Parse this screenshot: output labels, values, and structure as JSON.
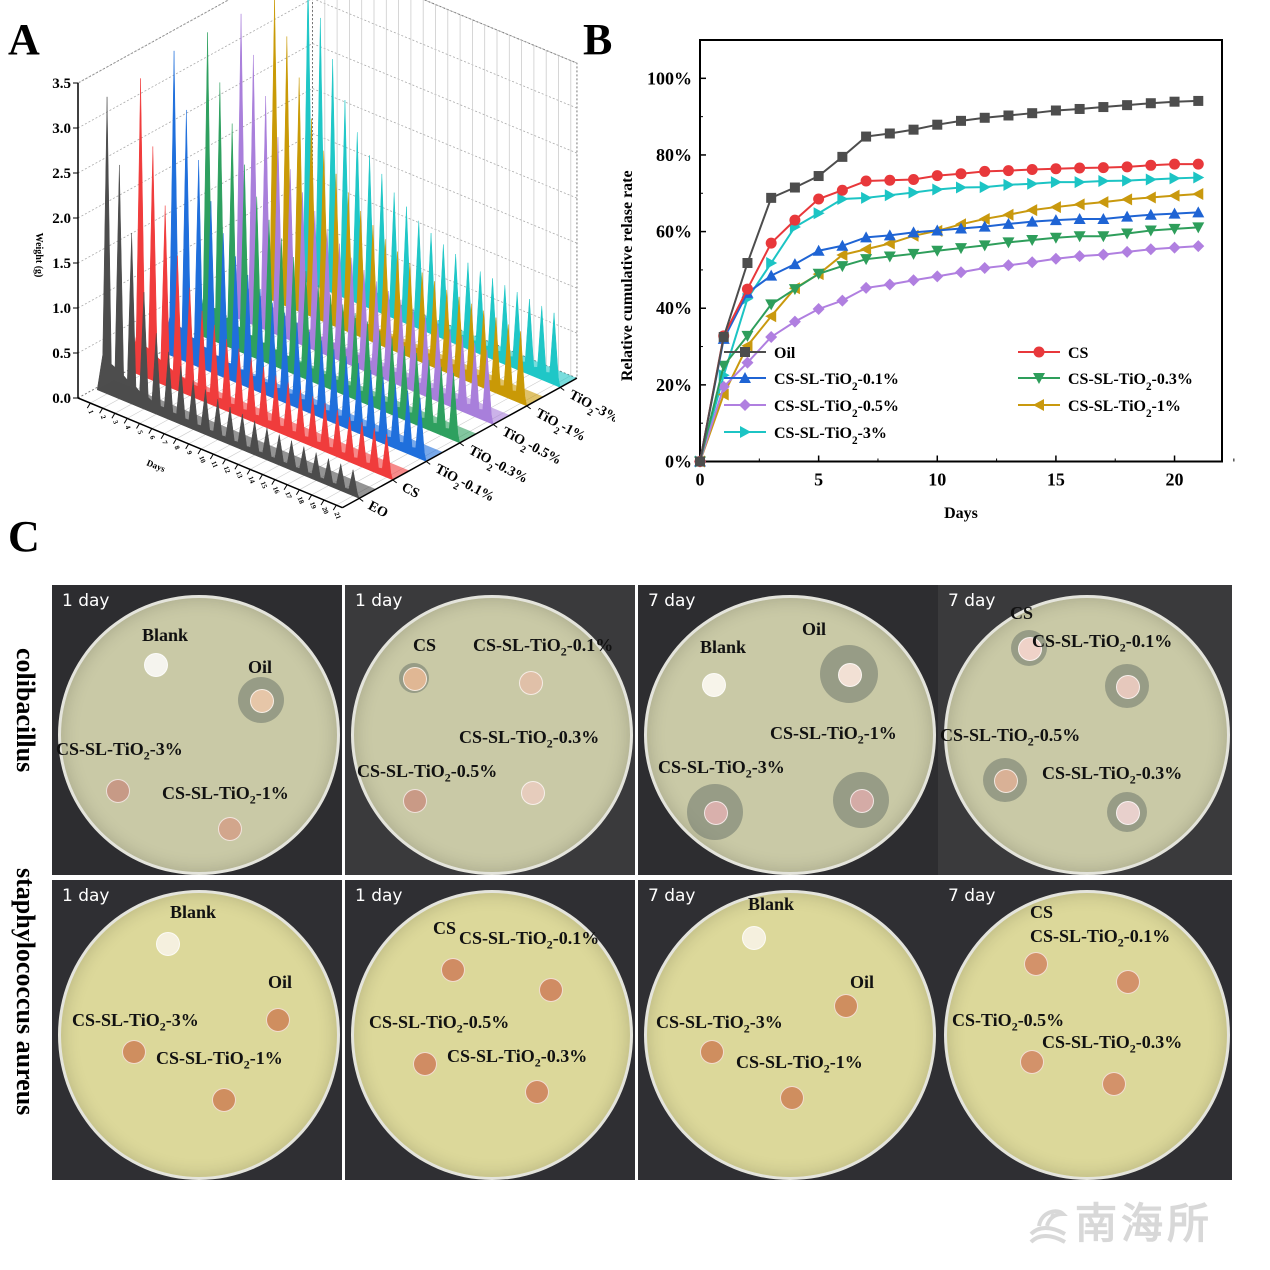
{
  "figure": {
    "panel_letters": [
      "A",
      "B",
      "C"
    ],
    "watermark": "南海所",
    "watermark_icon": "wave-fish-logo-icon"
  },
  "chart_data": [
    {
      "panel": "A",
      "type": "area",
      "subtype": "3d-waterfall",
      "title": "",
      "xlabel": "Days",
      "ylabel": "Weight (g)",
      "zlabel": "",
      "y_ticks": [
        "0.0",
        "0.5",
        "1.0",
        "1.5",
        "2.0",
        "2.5",
        "3.0",
        "3.5"
      ],
      "ylim": [
        0,
        3.5
      ],
      "x_ticks": [
        "1",
        "2",
        "3",
        "4",
        "5",
        "6",
        "7",
        "8",
        "9",
        "10",
        "11",
        "12",
        "13",
        "14",
        "15",
        "16",
        "17",
        "18",
        "19",
        "20",
        "21"
      ],
      "categories": [
        "EO",
        "CS",
        "TiO2-0.1%",
        "TiO2-0.3%",
        "TiO2-0.5%",
        "TiO2-1%",
        "TiO2-3%"
      ],
      "category_labels": [
        {
          "main": "EO",
          "sub": "",
          "tail": ""
        },
        {
          "main": "CS",
          "sub": "",
          "tail": ""
        },
        {
          "main": "TiO",
          "sub": "2",
          "tail": "-0.1%"
        },
        {
          "main": "TiO",
          "sub": "2",
          "tail": "-0.3%"
        },
        {
          "main": "TiO",
          "sub": "2",
          "tail": "-0.5%"
        },
        {
          "main": "TiO",
          "sub": "2",
          "tail": "-1%"
        },
        {
          "main": "TiO",
          "sub": "2",
          "tail": "-3%"
        }
      ],
      "series_colors": [
        "#4d4d4d",
        "#f03c3c",
        "#1f6fdc",
        "#2ea05f",
        "#a97fdb",
        "#c99a06",
        "#1fc7c7"
      ],
      "series": [
        {
          "name": "EO",
          "peak_values": [
            3.3,
            2.6,
            1.9,
            1.3,
            0.9,
            0.75,
            0.65,
            0.55,
            0.5,
            0.45,
            0.42,
            0.4,
            0.38,
            0.36,
            0.34,
            0.33,
            0.32,
            0.31,
            0.3,
            0.3,
            0.29
          ]
        },
        {
          "name": "CS",
          "peak_values": [
            3.3,
            2.6,
            2.0,
            1.5,
            1.2,
            1.0,
            0.9,
            0.8,
            0.75,
            0.7,
            0.66,
            0.62,
            0.6,
            0.58,
            0.56,
            0.54,
            0.52,
            0.5,
            0.5,
            0.49,
            0.48
          ]
        },
        {
          "name": "TiO2-0.1%",
          "peak_values": [
            3.4,
            2.8,
            2.3,
            1.9,
            1.6,
            1.4,
            1.25,
            1.15,
            1.05,
            1.0,
            0.95,
            0.9,
            0.86,
            0.82,
            0.8,
            0.78,
            0.76,
            0.74,
            0.72,
            0.7,
            0.68
          ]
        },
        {
          "name": "TiO2-0.3%",
          "peak_values": [
            3.4,
            2.9,
            2.5,
            2.1,
            1.8,
            1.6,
            1.45,
            1.3,
            1.2,
            1.1,
            1.05,
            1.0,
            0.96,
            0.92,
            0.88,
            0.85,
            0.82,
            0.8,
            0.78,
            0.76,
            0.75
          ]
        },
        {
          "name": "TiO2-0.5%",
          "peak_values": [
            3.4,
            3.0,
            2.6,
            2.2,
            1.9,
            1.7,
            1.55,
            1.4,
            1.3,
            1.2,
            1.12,
            1.05,
            1.0,
            0.96,
            0.92,
            0.9,
            0.88,
            0.86,
            0.84,
            0.82,
            0.8
          ]
        },
        {
          "name": "TiO2-1%",
          "peak_values": [
            3.4,
            3.0,
            2.6,
            2.2,
            1.9,
            1.7,
            1.55,
            1.4,
            1.3,
            1.2,
            1.12,
            1.05,
            1.0,
            0.96,
            0.92,
            0.9,
            0.88,
            0.86,
            0.84,
            0.82,
            0.8
          ]
        },
        {
          "name": "TiO2-3%",
          "peak_values": [
            3.4,
            3.0,
            2.6,
            2.2,
            1.9,
            1.7,
            1.55,
            1.4,
            1.3,
            1.2,
            1.12,
            1.05,
            1.0,
            0.96,
            0.92,
            0.9,
            0.88,
            0.86,
            0.84,
            0.82,
            0.8
          ]
        }
      ],
      "grid": true
    },
    {
      "panel": "B",
      "type": "line",
      "title": "",
      "xlabel": "Days",
      "ylabel": "Relative cumulative relase rate",
      "xlim": [
        0,
        22
      ],
      "ylim": [
        0,
        110
      ],
      "x_ticks": [
        0,
        5,
        10,
        15,
        20
      ],
      "y_ticks": [
        0,
        20,
        40,
        60,
        80,
        100
      ],
      "y_tick_labels": [
        "0%",
        "20%",
        "40%",
        "60%",
        "80%",
        "100%"
      ],
      "legend_position": "bottom-center-inside",
      "grid": false,
      "x": [
        0,
        1,
        2,
        3,
        4,
        5,
        6,
        7,
        8,
        9,
        10,
        11,
        12,
        13,
        14,
        15,
        16,
        17,
        18,
        19,
        20,
        21
      ],
      "series": [
        {
          "name": "Oil",
          "label": {
            "main": "Oil",
            "sub": "",
            "tail": ""
          },
          "color": "#4d4d4d",
          "marker": "square",
          "values": [
            0,
            32.5,
            51.8,
            68.8,
            71.5,
            74.5,
            79.5,
            84.8,
            85.6,
            86.6,
            87.9,
            88.9,
            89.7,
            90.3,
            90.9,
            91.6,
            92.0,
            92.5,
            93.0,
            93.5,
            93.9,
            94.1
          ]
        },
        {
          "name": "CS",
          "label": {
            "main": "CS",
            "sub": "",
            "tail": ""
          },
          "color": "#e8383b",
          "marker": "circle",
          "values": [
            0,
            32.8,
            45.0,
            57.0,
            63.0,
            68.5,
            70.8,
            73.2,
            73.4,
            73.6,
            74.6,
            75.1,
            75.7,
            75.9,
            76.2,
            76.4,
            76.6,
            76.7,
            76.9,
            77.3,
            77.6,
            77.6
          ]
        },
        {
          "name": "CS-SL-TiO2-0.1%",
          "label": {
            "main": "CS-SL-TiO",
            "sub": "2",
            "tail": "-0.1%"
          },
          "color": "#1f64d4",
          "marker": "triangle-up",
          "values": [
            0,
            32.0,
            44.0,
            48.5,
            51.5,
            55.0,
            56.3,
            58.5,
            59.0,
            59.8,
            60.3,
            60.8,
            61.3,
            62.0,
            62.6,
            63.0,
            63.3,
            63.3,
            63.9,
            64.4,
            64.7,
            65.0
          ]
        },
        {
          "name": "CS-SL-TiO2-0.3%",
          "label": {
            "main": "CS-SL-TiO",
            "sub": "2",
            "tail": "-0.3%"
          },
          "color": "#2e9e5b",
          "marker": "triangle-down",
          "values": [
            0,
            25.0,
            32.8,
            41.0,
            45.0,
            49.0,
            51.0,
            52.8,
            53.5,
            54.2,
            55.0,
            55.7,
            56.4,
            57.2,
            57.8,
            58.4,
            58.8,
            58.8,
            59.5,
            60.3,
            60.7,
            61.1
          ]
        },
        {
          "name": "CS-SL-TiO2-0.5%",
          "label": {
            "main": "CS-SL-TiO",
            "sub": "2",
            "tail": "-0.5%"
          },
          "color": "#b07fe0",
          "marker": "diamond",
          "values": [
            0,
            19.5,
            25.8,
            32.5,
            36.5,
            39.8,
            42.0,
            45.3,
            46.2,
            47.3,
            48.3,
            49.4,
            50.5,
            51.2,
            52.0,
            52.9,
            53.6,
            54.0,
            54.7,
            55.4,
            55.8,
            56.2
          ]
        },
        {
          "name": "CS-SL-TiO2-1%",
          "label": {
            "main": "CS-SL-TiO",
            "sub": "2",
            "tail": "-1%"
          },
          "color": "#c9990e",
          "marker": "triangle-left",
          "values": [
            0,
            17.5,
            30.2,
            37.9,
            45.2,
            48.9,
            53.9,
            55.4,
            56.9,
            58.9,
            60.2,
            61.9,
            63.3,
            64.4,
            65.6,
            66.4,
            67.1,
            67.7,
            68.4,
            68.9,
            69.4,
            69.8
          ]
        },
        {
          "name": "CS-SL-TiO2-3%",
          "label": {
            "main": "CS-SL-TiO",
            "sub": "2",
            "tail": "-3%"
          },
          "color": "#1cc4c4",
          "marker": "triangle-right",
          "values": [
            0,
            22.5,
            42.5,
            51.8,
            61.2,
            64.8,
            68.5,
            68.8,
            69.5,
            70.2,
            71.0,
            71.5,
            71.6,
            72.2,
            72.5,
            72.9,
            72.9,
            73.2,
            73.3,
            73.6,
            73.9,
            74.1
          ]
        }
      ]
    }
  ],
  "panelC": {
    "rows": [
      {
        "label": "colibacillus",
        "agar_color": "#c9c9a6"
      },
      {
        "label": "staphylococcus aureus",
        "agar_color": "#dcd89a"
      }
    ],
    "plates": [
      {
        "row": 0,
        "day": "1 day",
        "labels": [
          {
            "main": "Blank",
            "sub": "",
            "tail": ""
          },
          {
            "main": "Oil",
            "sub": "",
            "tail": ""
          },
          {
            "main": "CS-SL-TiO",
            "sub": "2",
            "tail": "-3%"
          },
          {
            "main": "CS-SL-TiO",
            "sub": "2",
            "tail": "-1%"
          }
        ]
      },
      {
        "row": 0,
        "day": "1 day",
        "labels": [
          {
            "main": "CS",
            "sub": "",
            "tail": ""
          },
          {
            "main": "CS-SL-TiO",
            "sub": "2",
            "tail": "-0.1%"
          },
          {
            "main": "CS-SL-TiO",
            "sub": "2",
            "tail": "-0.3%"
          },
          {
            "main": "CS-SL-TiO",
            "sub": "2",
            "tail": "-0.5%"
          }
        ]
      },
      {
        "row": 0,
        "day": "7 day",
        "labels": [
          {
            "main": "Blank",
            "sub": "",
            "tail": ""
          },
          {
            "main": "Oil",
            "sub": "",
            "tail": ""
          },
          {
            "main": "CS-SL-TiO",
            "sub": "2",
            "tail": "-1%"
          },
          {
            "main": "CS-SL-TiO",
            "sub": "2",
            "tail": "-3%"
          }
        ]
      },
      {
        "row": 0,
        "day": "7 day",
        "labels": [
          {
            "main": "CS",
            "sub": "",
            "tail": ""
          },
          {
            "main": "CS-SL-TiO",
            "sub": "2",
            "tail": "-0.1%"
          },
          {
            "main": "CS-SL-TiO",
            "sub": "2",
            "tail": "-0.5%"
          },
          {
            "main": "CS-SL-TiO",
            "sub": "2",
            "tail": "-0.3%"
          }
        ]
      },
      {
        "row": 1,
        "day": "1 day",
        "labels": [
          {
            "main": "Blank",
            "sub": "",
            "tail": ""
          },
          {
            "main": "Oil",
            "sub": "",
            "tail": ""
          },
          {
            "main": "CS-SL-TiO",
            "sub": "2",
            "tail": "-3%"
          },
          {
            "main": "CS-SL-TiO",
            "sub": "2",
            "tail": "-1%"
          }
        ]
      },
      {
        "row": 1,
        "day": "1 day",
        "labels": [
          {
            "main": "CS",
            "sub": "",
            "tail": ""
          },
          {
            "main": "CS-SL-TiO",
            "sub": "2",
            "tail": "-0.1%"
          },
          {
            "main": "CS-SL-TiO",
            "sub": "2",
            "tail": "-0.5%"
          },
          {
            "main": "CS-SL-TiO",
            "sub": "2",
            "tail": "-0.3%"
          }
        ]
      },
      {
        "row": 1,
        "day": "7 day",
        "labels": [
          {
            "main": "Blank",
            "sub": "",
            "tail": ""
          },
          {
            "main": "Oil",
            "sub": "",
            "tail": ""
          },
          {
            "main": "CS-SL-TiO",
            "sub": "2",
            "tail": "-3%"
          },
          {
            "main": "CS-SL-TiO",
            "sub": "2",
            "tail": "-1%"
          }
        ]
      },
      {
        "row": 1,
        "day": "7 day",
        "labels": [
          {
            "main": "CS",
            "sub": "",
            "tail": ""
          },
          {
            "main": "CS-SL-TiO",
            "sub": "2",
            "tail": "-0.1%"
          },
          {
            "main": "CS-TiO",
            "sub": "2",
            "tail": "-0.5%"
          },
          {
            "main": "CS-SL-TiO",
            "sub": "2",
            "tail": "-0.3%"
          }
        ]
      }
    ]
  }
}
